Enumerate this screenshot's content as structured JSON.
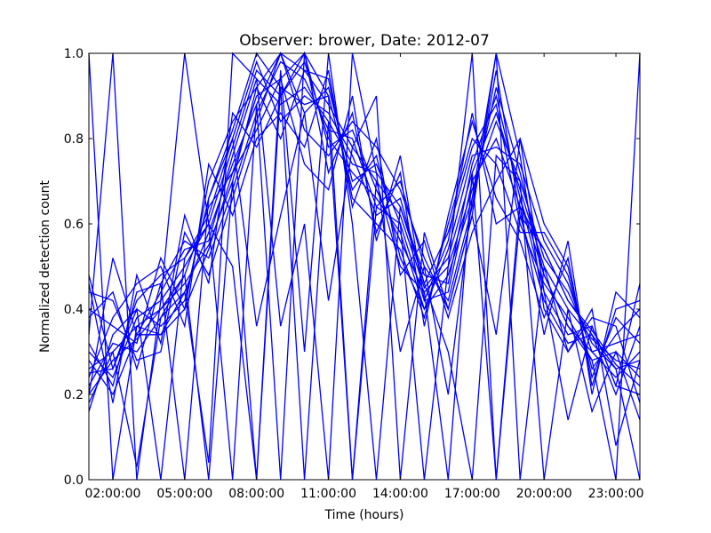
{
  "chart_data": {
    "type": "line",
    "title": "Observer: brower, Date: 2012-07",
    "xlabel": "Time (hours)",
    "ylabel": "Normalized detection count",
    "x_ticks": [
      "02:00:00",
      "05:00:00",
      "08:00:00",
      "11:00:00",
      "14:00:00",
      "17:00:00",
      "20:00:00",
      "23:00:00"
    ],
    "y_ticks": [
      "0.0",
      "0.2",
      "0.4",
      "0.6",
      "0.8",
      "1.0"
    ],
    "xlim": [
      1,
      24
    ],
    "ylim": [
      0,
      1
    ],
    "grid": false,
    "line_color": "#0000ff",
    "x": [
      1,
      2,
      3,
      4,
      5,
      6,
      7,
      8,
      9,
      10,
      11,
      12,
      13,
      14,
      15,
      16,
      17,
      18,
      19,
      20,
      21,
      22,
      23,
      24
    ],
    "series": [
      {
        "values": [
          0.2,
          0.28,
          0.33,
          0.4,
          0.46,
          0.55,
          0.7,
          0.92,
          1.0,
          0.96,
          0.88,
          0.78,
          0.7,
          0.62,
          0.45,
          0.52,
          0.72,
          0.86,
          0.68,
          0.5,
          0.4,
          0.33,
          0.28,
          0.26
        ]
      },
      {
        "values": [
          0.3,
          0.24,
          0.38,
          0.42,
          0.5,
          0.6,
          0.78,
          0.96,
          0.9,
          0.98,
          0.8,
          0.72,
          0.66,
          0.58,
          0.4,
          0.48,
          0.66,
          0.92,
          0.72,
          0.48,
          0.36,
          0.3,
          0.24,
          0.3
        ]
      },
      {
        "values": [
          0.18,
          0.3,
          0.36,
          0.34,
          0.44,
          0.58,
          0.74,
          0.88,
          1.0,
          0.86,
          0.92,
          0.7,
          0.74,
          0.6,
          0.42,
          0.44,
          0.7,
          0.8,
          0.64,
          0.54,
          0.42,
          0.35,
          0.27,
          0.22
        ]
      },
      {
        "values": [
          0.25,
          0.26,
          0.42,
          0.48,
          0.52,
          0.62,
          0.8,
          0.98,
          0.84,
          0.9,
          0.86,
          0.76,
          0.62,
          0.66,
          0.46,
          0.58,
          0.78,
          0.88,
          0.6,
          0.46,
          0.38,
          0.28,
          0.3,
          0.24
        ]
      },
      {
        "values": [
          0.22,
          0.32,
          0.3,
          0.38,
          0.48,
          0.64,
          0.72,
          0.9,
          0.94,
          1.0,
          0.78,
          0.82,
          0.68,
          0.56,
          0.44,
          0.5,
          0.68,
          0.84,
          0.7,
          0.52,
          0.44,
          0.32,
          0.26,
          0.28
        ]
      },
      {
        "values": [
          0.28,
          0.2,
          0.34,
          0.44,
          0.54,
          0.56,
          0.76,
          0.94,
          0.88,
          0.92,
          0.84,
          0.74,
          0.72,
          0.64,
          0.48,
          0.46,
          0.74,
          0.9,
          0.66,
          0.44,
          0.34,
          0.36,
          0.22,
          0.2
        ]
      },
      {
        "values": [
          0.16,
          0.34,
          0.4,
          0.36,
          0.42,
          0.66,
          0.82,
          1.0,
          0.92,
          0.88,
          0.9,
          0.68,
          0.76,
          0.52,
          0.4,
          0.54,
          0.76,
          0.78,
          0.74,
          0.56,
          0.46,
          0.3,
          0.32,
          0.34
        ]
      },
      {
        "values": [
          0.32,
          0.22,
          0.44,
          0.46,
          0.56,
          0.52,
          0.68,
          0.86,
          0.98,
          0.94,
          0.82,
          0.8,
          0.64,
          0.7,
          0.5,
          0.42,
          0.64,
          0.96,
          0.62,
          0.42,
          0.32,
          0.34,
          0.2,
          0.36
        ]
      },
      {
        "values": [
          0.4,
          0.36,
          0.32,
          0.52,
          0.4,
          0.7,
          0.84,
          0.92,
          0.8,
          0.96,
          0.94,
          0.66,
          0.6,
          0.54,
          0.38,
          0.6,
          0.8,
          0.74,
          0.58,
          0.58,
          0.48,
          0.26,
          0.34,
          0.4
        ]
      },
      {
        "values": [
          0.44,
          0.42,
          0.28,
          0.3,
          0.58,
          0.48,
          0.66,
          0.84,
          1.0,
          0.82,
          0.76,
          0.84,
          0.78,
          0.68,
          0.52,
          0.4,
          0.62,
          1.0,
          0.76,
          0.4,
          0.3,
          0.38,
          0.36,
          0.18
        ]
      },
      {
        "values": [
          0.24,
          0.38,
          0.46,
          0.5,
          0.36,
          0.74,
          0.62,
          0.8,
          0.86,
          0.78,
          0.96,
          0.64,
          0.8,
          0.48,
          0.56,
          0.38,
          0.58,
          0.7,
          0.8,
          0.6,
          0.5,
          0.24,
          0.38,
          0.32
        ]
      },
      {
        "values": [
          0.46,
          0.18,
          0.48,
          0.32,
          0.62,
          0.46,
          0.86,
          0.78,
          0.9,
          1.0,
          0.72,
          0.86,
          0.58,
          0.72,
          0.36,
          0.62,
          0.84,
          0.66,
          0.56,
          0.38,
          0.52,
          0.22,
          0.4,
          0.42
        ]
      },
      {
        "values": [
          1.0,
          0.0,
          0.36,
          0.4,
          0.48,
          0.0,
          0.7,
          0.0,
          0.92,
          0.0,
          0.84,
          0.0,
          0.7,
          0.5,
          0.44,
          0.0,
          0.72,
          0.0,
          0.66,
          0.48,
          0.36,
          0.28,
          0.0,
          1.0
        ]
      },
      {
        "values": [
          0.34,
          1.0,
          0.0,
          0.42,
          1.0,
          0.6,
          0.0,
          0.88,
          0.0,
          1.0,
          0.9,
          0.0,
          0.64,
          0.6,
          0.0,
          0.5,
          1.0,
          0.0,
          0.62,
          0.54,
          0.42,
          0.34,
          0.26,
          0.0
        ]
      },
      {
        "values": [
          0.26,
          0.3,
          0.03,
          0.38,
          0.44,
          0.04,
          1.0,
          0.94,
          0.36,
          0.6,
          0.0,
          1.0,
          0.72,
          0.3,
          0.5,
          0.2,
          0.66,
          1.0,
          0.0,
          0.5,
          0.3,
          0.4,
          0.08,
          0.28
        ]
      },
      {
        "values": [
          0.48,
          0.26,
          0.4,
          0.0,
          0.52,
          0.6,
          0.5,
          0.0,
          0.96,
          0.3,
          1.0,
          0.6,
          0.0,
          0.64,
          0.46,
          0.3,
          0.0,
          0.76,
          0.7,
          0.0,
          0.4,
          0.16,
          0.3,
          0.14
        ]
      },
      {
        "values": [
          0.38,
          0.44,
          0.26,
          0.46,
          0.0,
          0.66,
          0.8,
          0.36,
          0.62,
          0.86,
          0.42,
          0.78,
          0.9,
          0.0,
          0.58,
          0.4,
          0.62,
          0.34,
          0.8,
          0.44,
          0.14,
          0.36,
          0.22,
          0.46
        ]
      },
      {
        "values": [
          0.2,
          0.52,
          0.34,
          0.34,
          0.4,
          0.54,
          0.72,
          0.82,
          0.94,
          0.74,
          0.68,
          0.9,
          0.56,
          0.76,
          0.42,
          0.56,
          0.86,
          0.6,
          0.64,
          0.34,
          0.56,
          0.2,
          0.44,
          0.38
        ]
      }
    ]
  }
}
